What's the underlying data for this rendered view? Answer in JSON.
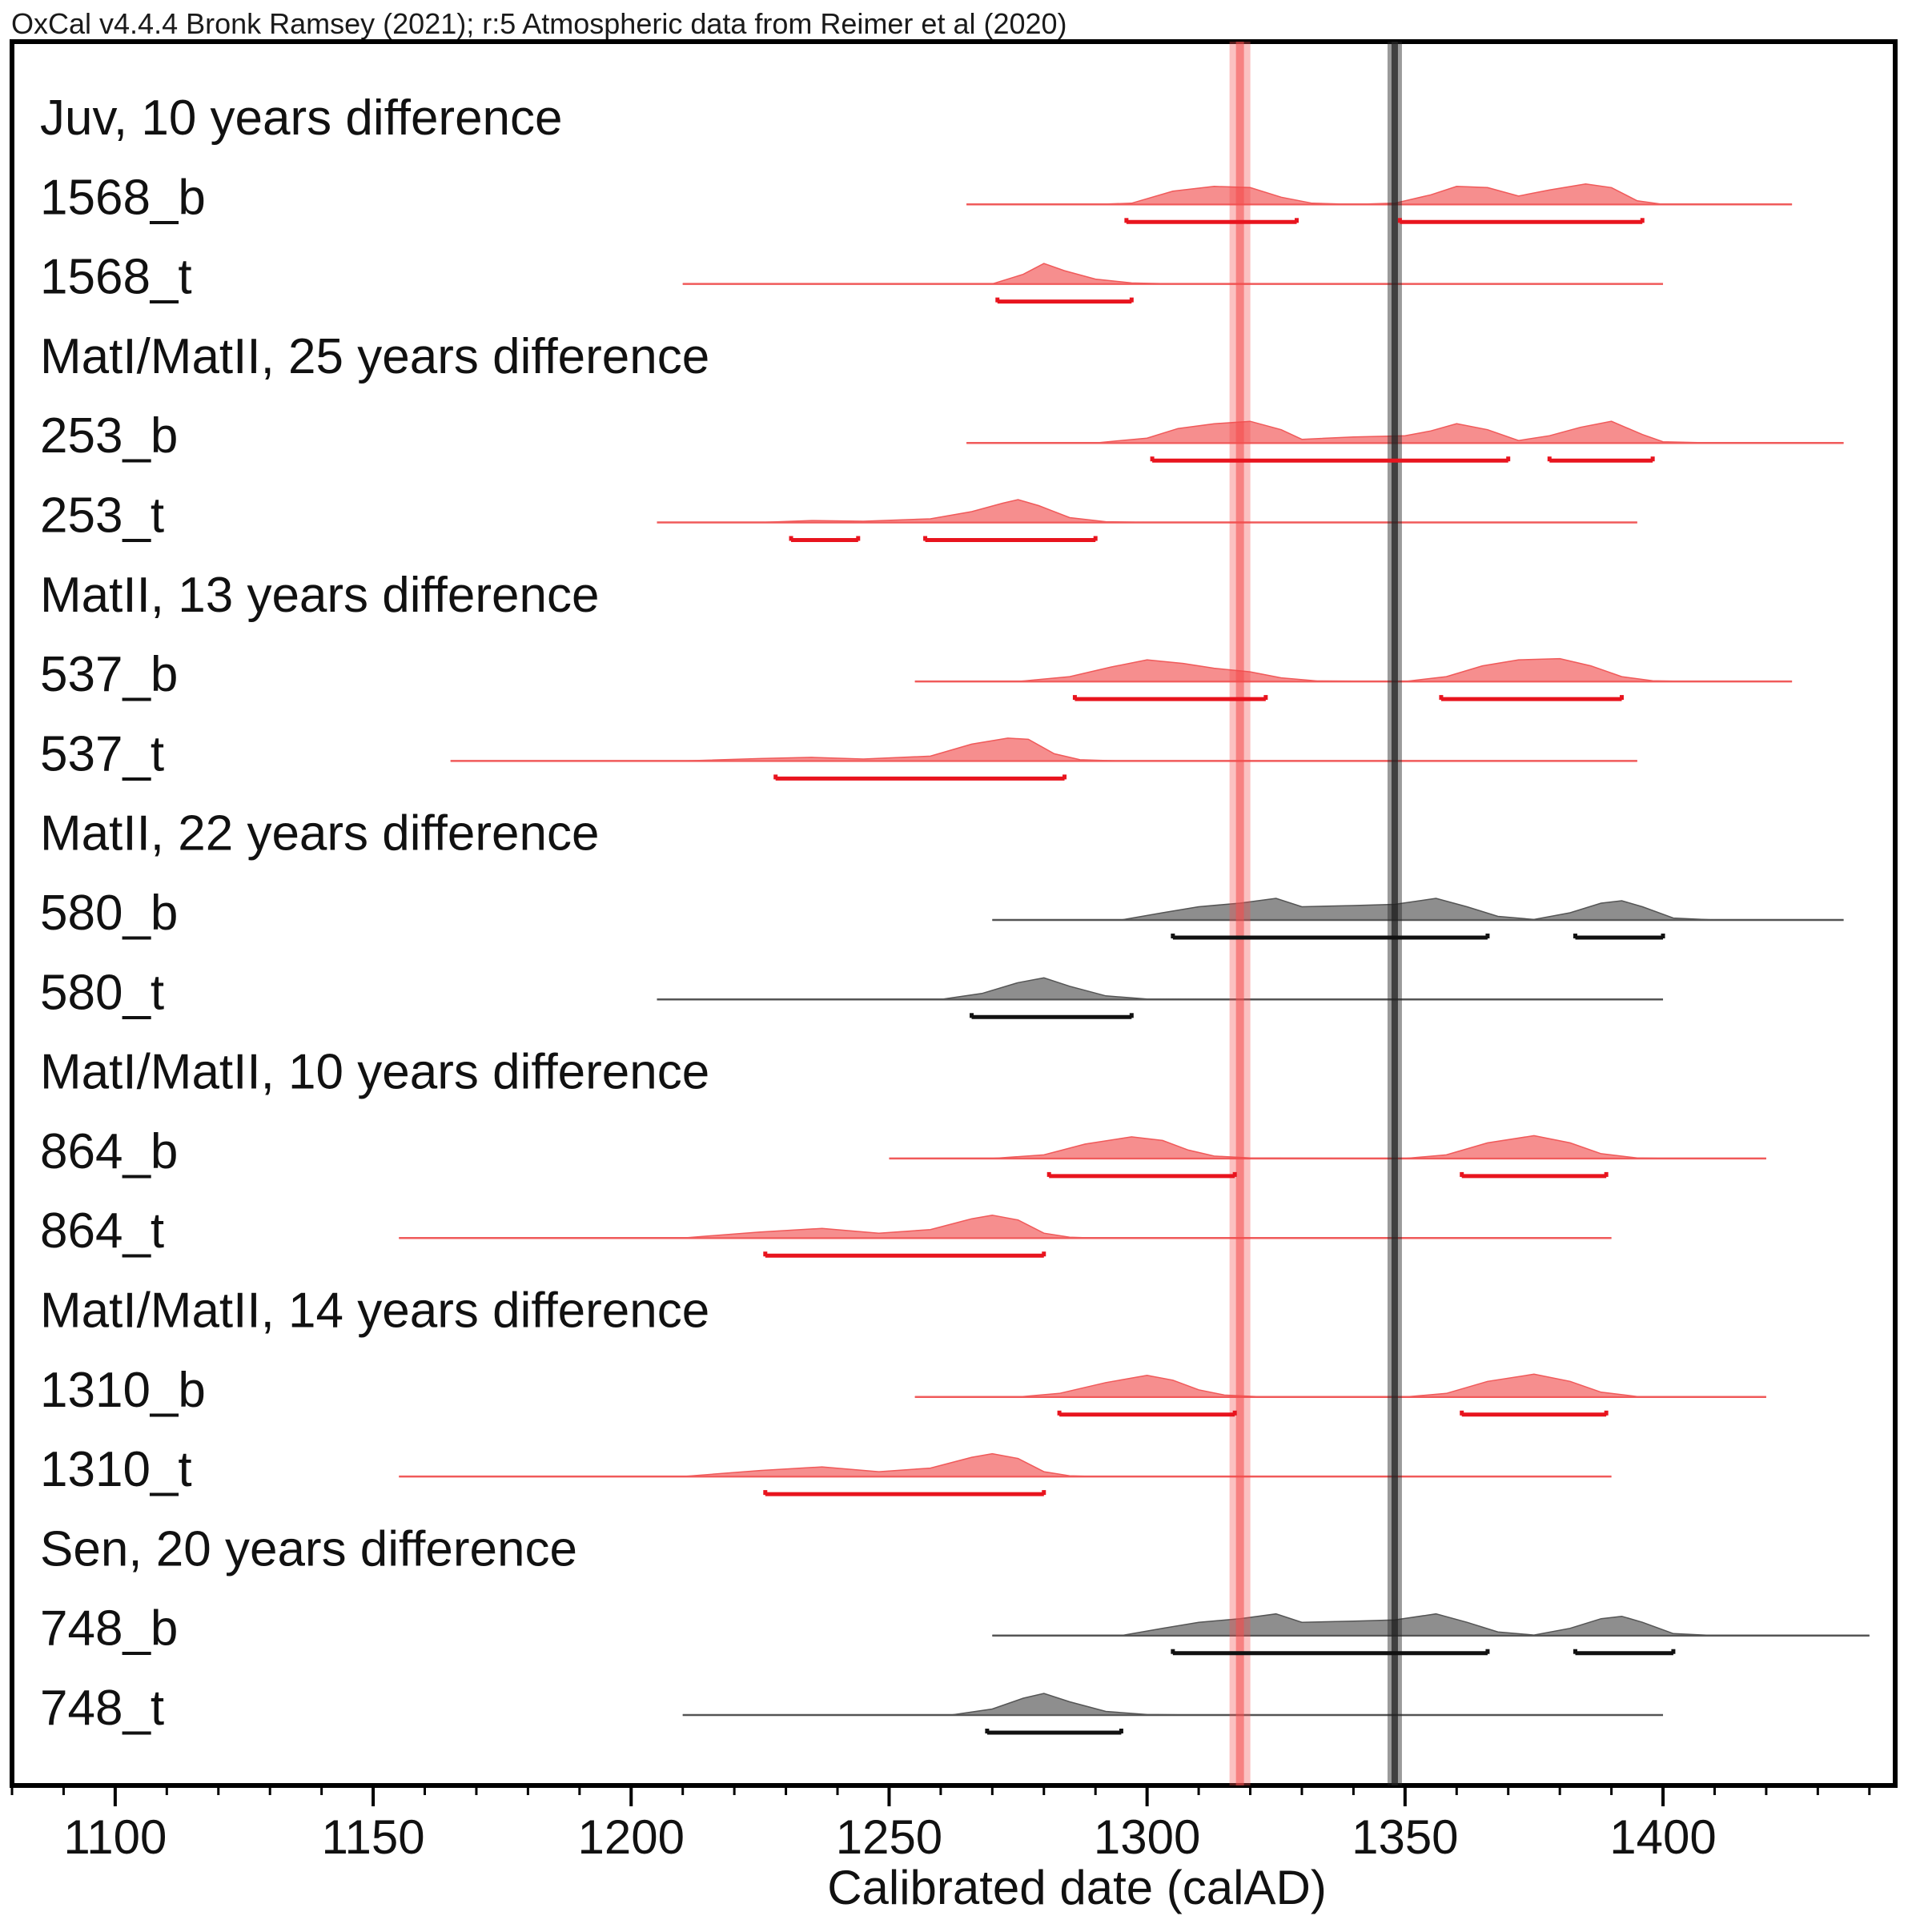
{
  "chart_data": {
    "type": "area",
    "credit": "OxCal v4.4.4 Bronk Ramsey (2021); r:5 Atmospheric data from Reimer et al (2020)",
    "xlabel": "Calibrated date (calAD)",
    "xlim": [
      1080,
      1445
    ],
    "x_ticks_major": [
      1100,
      1150,
      1200,
      1250,
      1300,
      1350,
      1400
    ],
    "x_tick_labels": [
      "1100",
      "1150",
      "1200",
      "1250",
      "1300",
      "1350",
      "1400"
    ],
    "x_minor_step": 10,
    "grid": false,
    "colors": {
      "red": "#f05a5a",
      "red_fill": "#f47a7a",
      "gray": "#555555",
      "gray_fill": "#7a7a7a",
      "range_red": "#e8141e",
      "range_black": "#111111"
    },
    "reference_lines": [
      {
        "x": 1318,
        "color": "#f44d4d"
      },
      {
        "x": 1348,
        "color": "#222222"
      }
    ],
    "rows": [
      {
        "kind": "header",
        "label": "Juv, 10 years difference"
      },
      {
        "kind": "sample",
        "label": "1568_b",
        "color": "red",
        "extent": [
          1265,
          1425
        ],
        "density": [
          [
            1265,
            0
          ],
          [
            1290,
            0
          ],
          [
            1297,
            0.05
          ],
          [
            1305,
            0.55
          ],
          [
            1313,
            0.75
          ],
          [
            1320,
            0.7
          ],
          [
            1326,
            0.3
          ],
          [
            1332,
            0.05
          ],
          [
            1340,
            0
          ],
          [
            1348,
            0.05
          ],
          [
            1355,
            0.4
          ],
          [
            1360,
            0.75
          ],
          [
            1366,
            0.7
          ],
          [
            1372,
            0.35
          ],
          [
            1378,
            0.6
          ],
          [
            1385,
            0.85
          ],
          [
            1390,
            0.7
          ],
          [
            1395,
            0.15
          ],
          [
            1400,
            0
          ],
          [
            1425,
            0
          ]
        ],
        "ranges": [
          [
            1296,
            1329
          ],
          [
            1349,
            1396
          ]
        ]
      },
      {
        "kind": "sample",
        "label": "1568_t",
        "color": "red",
        "extent": [
          1210,
          1400
        ],
        "density": [
          [
            1210,
            0
          ],
          [
            1270,
            0
          ],
          [
            1276,
            0.4
          ],
          [
            1280,
            0.85
          ],
          [
            1284,
            0.55
          ],
          [
            1290,
            0.2
          ],
          [
            1297,
            0.04
          ],
          [
            1305,
            0
          ],
          [
            1400,
            0
          ]
        ],
        "ranges": [
          [
            1271,
            1297
          ]
        ]
      },
      {
        "kind": "header",
        "label": "MatI/MatII, 25 years difference"
      },
      {
        "kind": "sample",
        "label": "253_b",
        "color": "red",
        "extent": [
          1265,
          1435
        ],
        "density": [
          [
            1265,
            0
          ],
          [
            1290,
            0
          ],
          [
            1300,
            0.2
          ],
          [
            1306,
            0.6
          ],
          [
            1313,
            0.8
          ],
          [
            1320,
            0.9
          ],
          [
            1326,
            0.55
          ],
          [
            1330,
            0.15
          ],
          [
            1340,
            0.25
          ],
          [
            1350,
            0.3
          ],
          [
            1355,
            0.5
          ],
          [
            1360,
            0.8
          ],
          [
            1366,
            0.55
          ],
          [
            1372,
            0.1
          ],
          [
            1378,
            0.3
          ],
          [
            1384,
            0.65
          ],
          [
            1390,
            0.9
          ],
          [
            1396,
            0.35
          ],
          [
            1400,
            0.05
          ],
          [
            1410,
            0
          ],
          [
            1435,
            0
          ]
        ],
        "ranges": [
          [
            1301,
            1370
          ],
          [
            1378,
            1398
          ]
        ]
      },
      {
        "kind": "sample",
        "label": "253_t",
        "color": "red",
        "extent": [
          1205,
          1395
        ],
        "density": [
          [
            1205,
            0
          ],
          [
            1225,
            0
          ],
          [
            1235,
            0.08
          ],
          [
            1245,
            0.05
          ],
          [
            1258,
            0.15
          ],
          [
            1266,
            0.45
          ],
          [
            1272,
            0.8
          ],
          [
            1275,
            0.95
          ],
          [
            1279,
            0.7
          ],
          [
            1285,
            0.2
          ],
          [
            1292,
            0.03
          ],
          [
            1300,
            0
          ],
          [
            1395,
            0
          ]
        ],
        "ranges": [
          [
            1231,
            1244
          ],
          [
            1257,
            1290
          ]
        ]
      },
      {
        "kind": "header",
        "label": "MatII, 13 years difference"
      },
      {
        "kind": "sample",
        "label": "537_b",
        "color": "red",
        "extent": [
          1255,
          1425
        ],
        "density": [
          [
            1255,
            0
          ],
          [
            1275,
            0
          ],
          [
            1285,
            0.2
          ],
          [
            1293,
            0.6
          ],
          [
            1300,
            0.9
          ],
          [
            1307,
            0.75
          ],
          [
            1313,
            0.55
          ],
          [
            1320,
            0.4
          ],
          [
            1326,
            0.15
          ],
          [
            1333,
            0.02
          ],
          [
            1350,
            0
          ],
          [
            1358,
            0.2
          ],
          [
            1365,
            0.65
          ],
          [
            1372,
            0.9
          ],
          [
            1380,
            0.95
          ],
          [
            1386,
            0.65
          ],
          [
            1392,
            0.2
          ],
          [
            1398,
            0.03
          ],
          [
            1405,
            0
          ],
          [
            1425,
            0
          ]
        ],
        "ranges": [
          [
            1286,
            1323
          ],
          [
            1357,
            1392
          ]
        ]
      },
      {
        "kind": "sample",
        "label": "537_t",
        "color": "red",
        "extent": [
          1165,
          1395
        ],
        "density": [
          [
            1165,
            0
          ],
          [
            1210,
            0
          ],
          [
            1225,
            0.1
          ],
          [
            1235,
            0.15
          ],
          [
            1245,
            0.08
          ],
          [
            1258,
            0.2
          ],
          [
            1266,
            0.7
          ],
          [
            1273,
            0.95
          ],
          [
            1277,
            0.9
          ],
          [
            1282,
            0.3
          ],
          [
            1287,
            0.05
          ],
          [
            1295,
            0
          ],
          [
            1395,
            0
          ]
        ],
        "ranges": [
          [
            1228,
            1284
          ]
        ]
      },
      {
        "kind": "header",
        "label": "MatII, 22 years difference"
      },
      {
        "kind": "sample",
        "label": "580_b",
        "color": "gray",
        "extent": [
          1270,
          1435
        ],
        "density": [
          [
            1270,
            0
          ],
          [
            1295,
            0
          ],
          [
            1303,
            0.3
          ],
          [
            1310,
            0.55
          ],
          [
            1318,
            0.7
          ],
          [
            1325,
            0.9
          ],
          [
            1330,
            0.55
          ],
          [
            1340,
            0.6
          ],
          [
            1348,
            0.65
          ],
          [
            1356,
            0.9
          ],
          [
            1362,
            0.55
          ],
          [
            1368,
            0.15
          ],
          [
            1375,
            0.02
          ],
          [
            1382,
            0.3
          ],
          [
            1388,
            0.7
          ],
          [
            1392,
            0.8
          ],
          [
            1396,
            0.55
          ],
          [
            1402,
            0.08
          ],
          [
            1410,
            0
          ],
          [
            1435,
            0
          ]
        ],
        "ranges": [
          [
            1305,
            1366
          ],
          [
            1383,
            1400
          ]
        ]
      },
      {
        "kind": "sample",
        "label": "580_t",
        "color": "gray",
        "extent": [
          1205,
          1400
        ],
        "density": [
          [
            1205,
            0
          ],
          [
            1260,
            0
          ],
          [
            1268,
            0.25
          ],
          [
            1275,
            0.7
          ],
          [
            1280,
            0.9
          ],
          [
            1285,
            0.55
          ],
          [
            1292,
            0.15
          ],
          [
            1300,
            0.02
          ],
          [
            1310,
            0
          ],
          [
            1400,
            0
          ]
        ],
        "ranges": [
          [
            1266,
            1297
          ]
        ]
      },
      {
        "kind": "header",
        "label": "MatI/MatII, 10 years difference"
      },
      {
        "kind": "sample",
        "label": "864_b",
        "color": "red",
        "extent": [
          1250,
          1420
        ],
        "density": [
          [
            1250,
            0
          ],
          [
            1270,
            0
          ],
          [
            1280,
            0.15
          ],
          [
            1288,
            0.6
          ],
          [
            1297,
            0.9
          ],
          [
            1303,
            0.75
          ],
          [
            1308,
            0.35
          ],
          [
            1313,
            0.1
          ],
          [
            1320,
            0.02
          ],
          [
            1350,
            0
          ],
          [
            1358,
            0.15
          ],
          [
            1366,
            0.65
          ],
          [
            1375,
            0.95
          ],
          [
            1382,
            0.65
          ],
          [
            1388,
            0.2
          ],
          [
            1395,
            0.02
          ],
          [
            1400,
            0
          ],
          [
            1420,
            0
          ]
        ],
        "ranges": [
          [
            1281,
            1317
          ],
          [
            1361,
            1389
          ]
        ]
      },
      {
        "kind": "sample",
        "label": "864_t",
        "color": "red",
        "extent": [
          1155,
          1390
        ],
        "density": [
          [
            1155,
            0
          ],
          [
            1210,
            0
          ],
          [
            1225,
            0.25
          ],
          [
            1237,
            0.4
          ],
          [
            1248,
            0.2
          ],
          [
            1258,
            0.35
          ],
          [
            1266,
            0.8
          ],
          [
            1270,
            0.95
          ],
          [
            1275,
            0.75
          ],
          [
            1280,
            0.2
          ],
          [
            1285,
            0.03
          ],
          [
            1290,
            0
          ],
          [
            1390,
            0
          ]
        ],
        "ranges": [
          [
            1226,
            1280
          ]
        ]
      },
      {
        "kind": "header",
        "label": "MatI/MatII, 14 years difference"
      },
      {
        "kind": "sample",
        "label": "1310_b",
        "color": "red",
        "extent": [
          1255,
          1420
        ],
        "density": [
          [
            1255,
            0
          ],
          [
            1275,
            0
          ],
          [
            1283,
            0.15
          ],
          [
            1292,
            0.6
          ],
          [
            1300,
            0.9
          ],
          [
            1305,
            0.7
          ],
          [
            1310,
            0.3
          ],
          [
            1315,
            0.08
          ],
          [
            1322,
            0.01
          ],
          [
            1350,
            0
          ],
          [
            1358,
            0.15
          ],
          [
            1366,
            0.65
          ],
          [
            1375,
            0.95
          ],
          [
            1382,
            0.65
          ],
          [
            1388,
            0.2
          ],
          [
            1395,
            0.02
          ],
          [
            1400,
            0
          ],
          [
            1420,
            0
          ]
        ],
        "ranges": [
          [
            1283,
            1317
          ],
          [
            1361,
            1389
          ]
        ]
      },
      {
        "kind": "sample",
        "label": "1310_t",
        "color": "red",
        "extent": [
          1155,
          1390
        ],
        "density": [
          [
            1155,
            0
          ],
          [
            1210,
            0
          ],
          [
            1225,
            0.25
          ],
          [
            1237,
            0.4
          ],
          [
            1248,
            0.2
          ],
          [
            1258,
            0.35
          ],
          [
            1266,
            0.8
          ],
          [
            1270,
            0.95
          ],
          [
            1275,
            0.75
          ],
          [
            1280,
            0.2
          ],
          [
            1285,
            0.03
          ],
          [
            1290,
            0
          ],
          [
            1390,
            0
          ]
        ],
        "ranges": [
          [
            1226,
            1280
          ]
        ]
      },
      {
        "kind": "header",
        "label": "Sen, 20 years difference"
      },
      {
        "kind": "sample",
        "label": "748_b",
        "color": "gray",
        "extent": [
          1270,
          1440
        ],
        "density": [
          [
            1270,
            0
          ],
          [
            1295,
            0
          ],
          [
            1303,
            0.3
          ],
          [
            1310,
            0.55
          ],
          [
            1318,
            0.7
          ],
          [
            1325,
            0.9
          ],
          [
            1330,
            0.55
          ],
          [
            1340,
            0.6
          ],
          [
            1348,
            0.65
          ],
          [
            1356,
            0.9
          ],
          [
            1362,
            0.55
          ],
          [
            1368,
            0.15
          ],
          [
            1375,
            0.02
          ],
          [
            1382,
            0.3
          ],
          [
            1388,
            0.7
          ],
          [
            1392,
            0.8
          ],
          [
            1396,
            0.55
          ],
          [
            1402,
            0.08
          ],
          [
            1410,
            0
          ],
          [
            1440,
            0
          ]
        ],
        "ranges": [
          [
            1305,
            1366
          ],
          [
            1383,
            1402
          ]
        ]
      },
      {
        "kind": "sample",
        "label": "748_t",
        "color": "gray",
        "extent": [
          1210,
          1400
        ],
        "density": [
          [
            1210,
            0
          ],
          [
            1262,
            0
          ],
          [
            1270,
            0.25
          ],
          [
            1276,
            0.7
          ],
          [
            1280,
            0.9
          ],
          [
            1285,
            0.55
          ],
          [
            1292,
            0.15
          ],
          [
            1300,
            0.02
          ],
          [
            1310,
            0
          ],
          [
            1400,
            0
          ]
        ],
        "ranges": [
          [
            1269,
            1295
          ]
        ]
      }
    ]
  }
}
